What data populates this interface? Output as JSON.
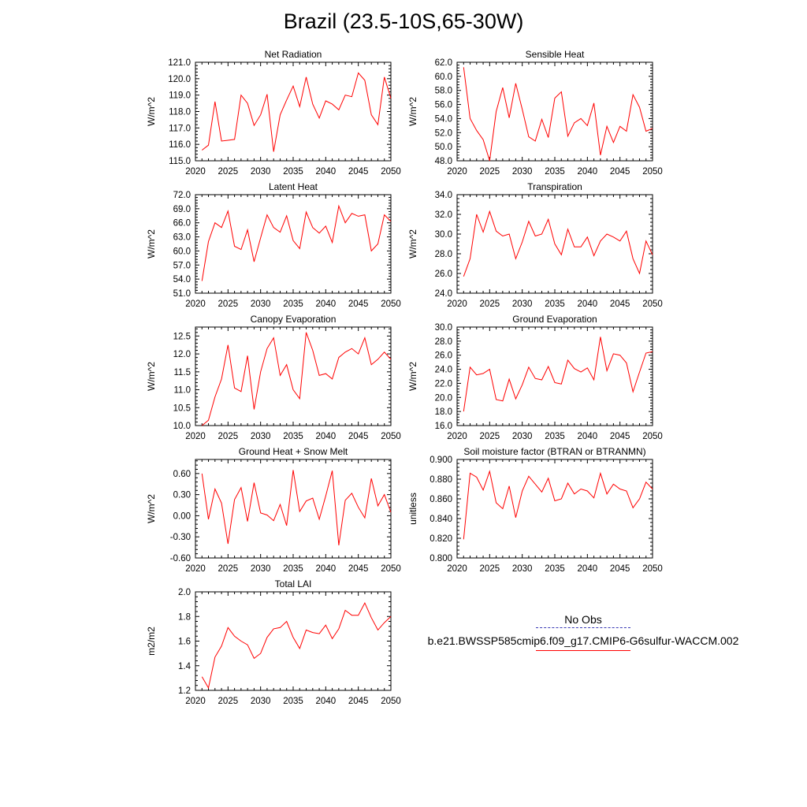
{
  "figure": {
    "title": "Brazil (23.5-10S,65-30W)"
  },
  "legend": {
    "obs_label": "No Obs",
    "model_label": "b.e21.BWSSP585cmip6.f09_g17.CMIP6-G6sulfur-WACCM.002",
    "obs_color": "#3b3bb5",
    "model_color": "#ff0000"
  },
  "chart_data": [
    {
      "type": "line",
      "title": "Net Radiation",
      "ylabel": "W/m^2",
      "xlim": [
        2020,
        2050
      ],
      "ylim": [
        115.0,
        121.0
      ],
      "yticks": [
        "115.0",
        "116.0",
        "117.0",
        "118.0",
        "119.0",
        "120.0",
        "121.0"
      ],
      "xticks": [
        "2020",
        "2025",
        "2030",
        "2035",
        "2040",
        "2045",
        "2050"
      ],
      "x": [
        2021,
        2022,
        2023,
        2024,
        2025,
        2026,
        2027,
        2028,
        2029,
        2030,
        2031,
        2032,
        2033,
        2034,
        2035,
        2036,
        2037,
        2038,
        2039,
        2040,
        2041,
        2042,
        2043,
        2044,
        2045,
        2046,
        2047,
        2048,
        2049,
        2050
      ],
      "values": [
        115.65,
        115.95,
        118.6,
        116.2,
        116.25,
        116.3,
        119.0,
        118.5,
        117.15,
        117.8,
        119.05,
        115.55,
        117.8,
        118.7,
        119.55,
        118.3,
        120.1,
        118.45,
        117.6,
        118.65,
        118.45,
        118.1,
        119.0,
        118.9,
        120.35,
        119.9,
        117.8,
        117.2,
        120.1,
        118.8
      ],
      "color": "#ff0000"
    },
    {
      "type": "line",
      "title": "Sensible Heat",
      "ylabel": "W/m^2",
      "xlim": [
        2020,
        2050
      ],
      "ylim": [
        48.0,
        62.0
      ],
      "yticks": [
        "48.0",
        "50.0",
        "52.0",
        "54.0",
        "56.0",
        "58.0",
        "60.0",
        "62.0"
      ],
      "xticks": [
        "2020",
        "2025",
        "2030",
        "2035",
        "2040",
        "2045",
        "2050"
      ],
      "x": [
        2021,
        2022,
        2023,
        2024,
        2025,
        2026,
        2027,
        2028,
        2029,
        2030,
        2031,
        2032,
        2033,
        2034,
        2035,
        2036,
        2037,
        2038,
        2039,
        2040,
        2041,
        2042,
        2043,
        2044,
        2045,
        2046,
        2047,
        2048,
        2049,
        2050
      ],
      "values": [
        61.3,
        54.0,
        52.3,
        51.0,
        48.0,
        55.0,
        58.4,
        54.1,
        59.0,
        55.3,
        51.4,
        50.8,
        53.9,
        51.3,
        56.9,
        57.8,
        51.5,
        53.4,
        54.0,
        53.0,
        56.2,
        48.8,
        52.9,
        50.6,
        52.9,
        52.2,
        57.4,
        55.6,
        52.2,
        52.6
      ],
      "color": "#ff0000"
    },
    {
      "type": "line",
      "title": "Latent Heat",
      "ylabel": "W/m^2",
      "xlim": [
        2020,
        2050
      ],
      "ylim": [
        51.0,
        72.0
      ],
      "yticks": [
        "51.0",
        "54.0",
        "57.0",
        "60.0",
        "63.0",
        "66.0",
        "69.0",
        "72.0"
      ],
      "xticks": [
        "2020",
        "2025",
        "2030",
        "2035",
        "2040",
        "2045",
        "2050"
      ],
      "x": [
        2021,
        2022,
        2023,
        2024,
        2025,
        2026,
        2027,
        2028,
        2029,
        2030,
        2031,
        2032,
        2033,
        2034,
        2035,
        2036,
        2037,
        2038,
        2039,
        2040,
        2041,
        2042,
        2043,
        2044,
        2045,
        2046,
        2047,
        2048,
        2049,
        2050
      ],
      "values": [
        53.6,
        62.0,
        66.0,
        65.0,
        68.5,
        61.0,
        60.3,
        64.5,
        57.7,
        62.8,
        67.7,
        65.0,
        64.0,
        67.5,
        62.2,
        60.5,
        68.3,
        65.0,
        63.8,
        65.3,
        61.8,
        69.6,
        66.0,
        68.0,
        67.4,
        67.7,
        60.0,
        61.5,
        67.7,
        66.3
      ],
      "color": "#ff0000"
    },
    {
      "type": "line",
      "title": "Transpiration",
      "ylabel": "W/m^2",
      "xlim": [
        2020,
        2050
      ],
      "ylim": [
        24.0,
        34.0
      ],
      "yticks": [
        "24.0",
        "26.0",
        "28.0",
        "30.0",
        "32.0",
        "34.0"
      ],
      "xticks": [
        "2020",
        "2025",
        "2030",
        "2035",
        "2040",
        "2045",
        "2050"
      ],
      "x": [
        2021,
        2022,
        2023,
        2024,
        2025,
        2026,
        2027,
        2028,
        2029,
        2030,
        2031,
        2032,
        2033,
        2034,
        2035,
        2036,
        2037,
        2038,
        2039,
        2040,
        2041,
        2042,
        2043,
        2044,
        2045,
        2046,
        2047,
        2048,
        2049,
        2050
      ],
      "values": [
        25.7,
        27.5,
        32.0,
        30.2,
        32.3,
        30.3,
        29.8,
        30.0,
        27.5,
        29.2,
        31.3,
        29.8,
        30.0,
        31.5,
        29.0,
        27.9,
        30.5,
        28.7,
        28.7,
        29.7,
        27.8,
        29.3,
        30.0,
        29.7,
        29.3,
        30.3,
        27.5,
        26.0,
        29.3,
        27.9
      ],
      "color": "#ff0000"
    },
    {
      "type": "line",
      "title": "Canopy Evaporation",
      "ylabel": "W/m^2",
      "xlim": [
        2020,
        2050
      ],
      "ylim": [
        10.0,
        12.75
      ],
      "yticks": [
        "10.0",
        "10.5",
        "11.0",
        "11.5",
        "12.0",
        "12.5"
      ],
      "xticks": [
        "2020",
        "2025",
        "2030",
        "2035",
        "2040",
        "2045",
        "2050"
      ],
      "x": [
        2021,
        2022,
        2023,
        2024,
        2025,
        2026,
        2027,
        2028,
        2029,
        2030,
        2031,
        2032,
        2033,
        2034,
        2035,
        2036,
        2037,
        2038,
        2039,
        2040,
        2041,
        2042,
        2043,
        2044,
        2045,
        2046,
        2047,
        2048,
        2049,
        2050
      ],
      "values": [
        10.0,
        10.15,
        10.8,
        11.3,
        12.25,
        11.05,
        10.95,
        11.95,
        10.45,
        11.5,
        12.15,
        12.45,
        11.4,
        11.7,
        11.0,
        10.75,
        12.6,
        12.1,
        11.4,
        11.45,
        11.3,
        11.9,
        12.05,
        12.15,
        12.0,
        12.45,
        11.7,
        11.85,
        12.05,
        11.85
      ],
      "color": "#ff0000"
    },
    {
      "type": "line",
      "title": "Ground Evaporation",
      "ylabel": "W/m^2",
      "xlim": [
        2020,
        2050
      ],
      "ylim": [
        16.0,
        30.0
      ],
      "yticks": [
        "16.0",
        "18.0",
        "20.0",
        "22.0",
        "24.0",
        "26.0",
        "28.0",
        "30.0"
      ],
      "xticks": [
        "2020",
        "2025",
        "2030",
        "2035",
        "2040",
        "2045",
        "2050"
      ],
      "x": [
        2021,
        2022,
        2023,
        2024,
        2025,
        2026,
        2027,
        2028,
        2029,
        2030,
        2031,
        2032,
        2033,
        2034,
        2035,
        2036,
        2037,
        2038,
        2039,
        2040,
        2041,
        2042,
        2043,
        2044,
        2045,
        2046,
        2047,
        2048,
        2049,
        2050
      ],
      "values": [
        18.0,
        24.3,
        23.2,
        23.4,
        24.0,
        19.7,
        19.5,
        22.6,
        19.8,
        21.8,
        24.3,
        22.7,
        22.5,
        24.4,
        22.1,
        21.9,
        25.3,
        24.1,
        23.6,
        24.2,
        22.5,
        28.6,
        23.8,
        26.2,
        26.0,
        24.9,
        20.8,
        23.6,
        26.3,
        26.5
      ],
      "color": "#ff0000"
    },
    {
      "type": "line",
      "title": "Ground Heat + Snow Melt",
      "ylabel": "W/m^2",
      "xlim": [
        2020,
        2050
      ],
      "ylim": [
        -0.6,
        0.8
      ],
      "yticks": [
        "-0.60",
        "-0.30",
        "0.00",
        "0.30",
        "0.60"
      ],
      "xticks": [
        "2020",
        "2025",
        "2030",
        "2035",
        "2040",
        "2045",
        "2050"
      ],
      "x": [
        2021,
        2022,
        2023,
        2024,
        2025,
        2026,
        2027,
        2028,
        2029,
        2030,
        2031,
        2032,
        2033,
        2034,
        2035,
        2036,
        2037,
        2038,
        2039,
        2040,
        2041,
        2042,
        2043,
        2044,
        2045,
        2046,
        2047,
        2048,
        2049,
        2050
      ],
      "values": [
        0.6,
        -0.05,
        0.38,
        0.18,
        -0.4,
        0.23,
        0.4,
        -0.08,
        0.47,
        0.04,
        0.01,
        -0.07,
        0.16,
        -0.14,
        0.65,
        0.06,
        0.21,
        0.25,
        -0.05,
        0.28,
        0.64,
        -0.42,
        0.22,
        0.32,
        0.12,
        -0.03,
        0.53,
        0.14,
        0.3,
        0.05
      ],
      "color": "#ff0000"
    },
    {
      "type": "line",
      "title": "Soil moisture factor (BTRAN or BTRANMN)",
      "ylabel": "unitless",
      "xlim": [
        2020,
        2050
      ],
      "ylim": [
        0.8,
        0.9
      ],
      "yticks": [
        "0.800",
        "0.820",
        "0.840",
        "0.860",
        "0.880",
        "0.900"
      ],
      "xticks": [
        "2020",
        "2025",
        "2030",
        "2035",
        "2040",
        "2045",
        "2050"
      ],
      "x": [
        2021,
        2022,
        2023,
        2024,
        2025,
        2026,
        2027,
        2028,
        2029,
        2030,
        2031,
        2032,
        2033,
        2034,
        2035,
        2036,
        2037,
        2038,
        2039,
        2040,
        2041,
        2042,
        2043,
        2044,
        2045,
        2046,
        2047,
        2048,
        2049,
        2050
      ],
      "values": [
        0.819,
        0.886,
        0.882,
        0.869,
        0.888,
        0.856,
        0.85,
        0.873,
        0.841,
        0.868,
        0.883,
        0.875,
        0.867,
        0.881,
        0.858,
        0.86,
        0.876,
        0.865,
        0.87,
        0.868,
        0.861,
        0.886,
        0.865,
        0.875,
        0.87,
        0.868,
        0.851,
        0.86,
        0.877,
        0.87
      ],
      "color": "#ff0000"
    },
    {
      "type": "line",
      "title": "Total LAI",
      "ylabel": "m2/m2",
      "xlim": [
        2020,
        2050
      ],
      "ylim": [
        1.2,
        2.0
      ],
      "yticks": [
        "1.2",
        "1.4",
        "1.6",
        "1.8",
        "2.0"
      ],
      "xticks": [
        "2020",
        "2025",
        "2030",
        "2035",
        "2040",
        "2045",
        "2050"
      ],
      "x": [
        2021,
        2022,
        2023,
        2024,
        2025,
        2026,
        2027,
        2028,
        2029,
        2030,
        2031,
        2032,
        2033,
        2034,
        2035,
        2036,
        2037,
        2038,
        2039,
        2040,
        2041,
        2042,
        2043,
        2044,
        2045,
        2046,
        2047,
        2048,
        2049,
        2050
      ],
      "values": [
        1.31,
        1.22,
        1.47,
        1.56,
        1.71,
        1.64,
        1.6,
        1.57,
        1.46,
        1.5,
        1.63,
        1.7,
        1.71,
        1.76,
        1.63,
        1.54,
        1.69,
        1.67,
        1.66,
        1.73,
        1.62,
        1.7,
        1.85,
        1.81,
        1.81,
        1.91,
        1.79,
        1.69,
        1.75,
        1.8
      ],
      "color": "#ff0000"
    }
  ]
}
